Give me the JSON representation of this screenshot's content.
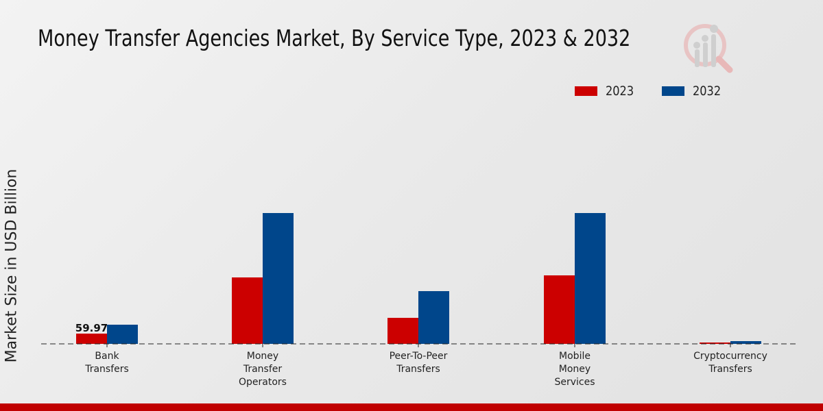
{
  "header": {
    "title": "Money Transfer Agencies Market, By Service Type, 2023 & 2032"
  },
  "logo": {
    "icon": "magnifier-chart-logo-icon"
  },
  "colors": {
    "series_2023": "#cc0000",
    "series_2032": "#00468b",
    "footer_bar": "#c00000"
  },
  "legend": {
    "items": [
      {
        "label": "2023",
        "color": "#cc0000"
      },
      {
        "label": "2032",
        "color": "#00468b"
      }
    ]
  },
  "chart_data": {
    "type": "bar",
    "title": "Money Transfer Agencies Market, By Service Type, 2023 & 2032",
    "xlabel": "",
    "ylabel": "Market Size in USD Billion",
    "categories": [
      "Bank Transfers",
      "Money Transfer Operators",
      "Peer-To-Peer Transfers",
      "Mobile Money Services",
      "Cryptocurrency Transfers"
    ],
    "category_lines": [
      [
        "Bank",
        "Transfers"
      ],
      [
        "Money",
        "Transfer",
        "Operators"
      ],
      [
        "Peer-To-Peer",
        "Transfers"
      ],
      [
        "Mobile",
        "Money",
        "Services"
      ],
      [
        "Cryptocurrency",
        "Transfers"
      ]
    ],
    "series": [
      {
        "name": "2023",
        "color": "#cc0000",
        "values": [
          59.97,
          388,
          152,
          400,
          8
        ]
      },
      {
        "name": "2032",
        "color": "#00468b",
        "values": [
          112,
          764,
          308,
          764,
          16
        ]
      }
    ],
    "data_labels": [
      {
        "series": "2023",
        "category": "Bank Transfers",
        "text": "59.97"
      }
    ],
    "ylim": [
      0,
      1000
    ],
    "grid": false,
    "baseline_style": "dashed",
    "legend_position": "top-right"
  }
}
